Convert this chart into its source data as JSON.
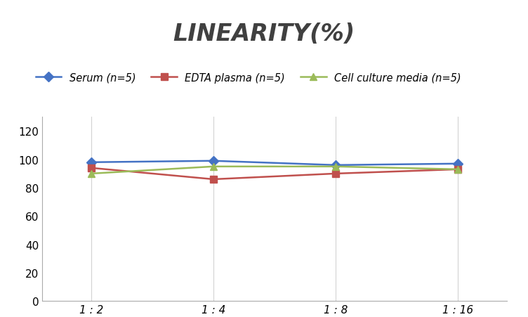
{
  "title": "LINEARITY(%)",
  "x_labels": [
    "1 : 2",
    "1 : 4",
    "1 : 8",
    "1 : 16"
  ],
  "x_positions": [
    0,
    1,
    2,
    3
  ],
  "series": [
    {
      "name": "Serum (n=5)",
      "values": [
        98,
        99,
        96,
        97
      ],
      "color": "#4472C4",
      "marker": "D",
      "linewidth": 1.8
    },
    {
      "name": "EDTA plasma (n=5)",
      "values": [
        94,
        86,
        90,
        93
      ],
      "color": "#C0504D",
      "marker": "s",
      "linewidth": 1.8
    },
    {
      "name": "Cell culture media (n=5)",
      "values": [
        90,
        95,
        95,
        93
      ],
      "color": "#9BBB59",
      "marker": "^",
      "linewidth": 1.8
    }
  ],
  "ylim": [
    0,
    130
  ],
  "yticks": [
    0,
    20,
    40,
    60,
    80,
    100,
    120
  ],
  "background_color": "#FFFFFF",
  "grid_color": "#D3D3D3",
  "title_fontsize": 24,
  "legend_fontsize": 10.5,
  "tick_fontsize": 11
}
